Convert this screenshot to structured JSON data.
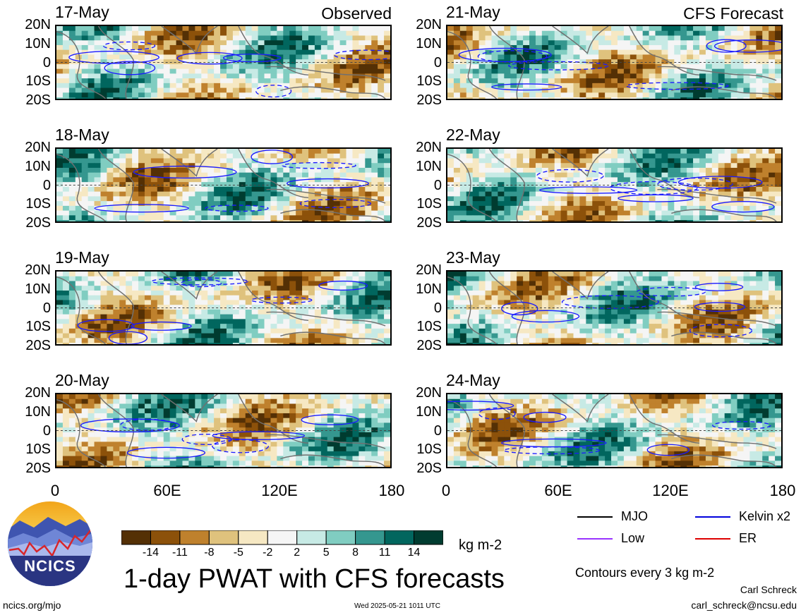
{
  "panels": {
    "left_tag": "Observed",
    "right_tag": "CFS Forecast",
    "left": [
      {
        "date": "17-May"
      },
      {
        "date": "18-May"
      },
      {
        "date": "19-May"
      },
      {
        "date": "20-May"
      }
    ],
    "right": [
      {
        "date": "21-May"
      },
      {
        "date": "22-May"
      },
      {
        "date": "23-May"
      },
      {
        "date": "24-May"
      }
    ]
  },
  "axes": {
    "lat_labels": [
      "20N",
      "10N",
      "0",
      "10S",
      "20S"
    ],
    "lon_labels": [
      "0",
      "60E",
      "120E",
      "180"
    ]
  },
  "colorbar": {
    "labels": [
      "-14",
      "-11",
      "-8",
      "-5",
      "-2",
      "2",
      "5",
      "8",
      "11",
      "14"
    ],
    "colors": [
      "#543005",
      "#8c510a",
      "#bf812d",
      "#dfc27d",
      "#f6e8c3",
      "#f5f5f5",
      "#c7eae5",
      "#80cdc1",
      "#35978f",
      "#01665e",
      "#003c30"
    ],
    "unit": "kg m-2"
  },
  "legend": {
    "items": [
      {
        "label": "MJO",
        "color": "#000000",
        "style": "solid"
      },
      {
        "label": "Kelvin x2",
        "color": "#0000dd",
        "style": "solid"
      },
      {
        "label": "Low",
        "color": "#9933ff",
        "style": "solid"
      },
      {
        "label": "ER",
        "color": "#dd0000",
        "style": "solid"
      }
    ],
    "contour_note": "Contours every 3 kg m-2"
  },
  "footer": {
    "title": "1-day PWAT with CFS forecasts",
    "url": "ncics.org/mjo",
    "timestamp": "Wed 2025-05-21 1011 UTC",
    "author": "Carl Schreck",
    "email": "carl_schreck@ncsu.edu",
    "logo_text": "NCICS"
  }
}
